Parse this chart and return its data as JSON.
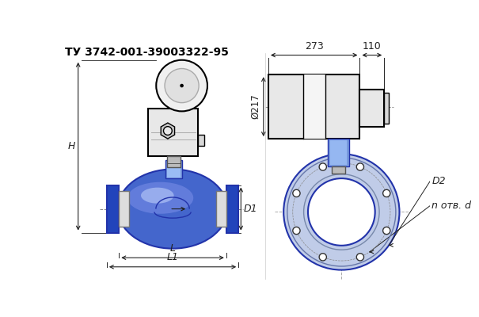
{
  "title": "ТУ 3742-001-39003322-95",
  "bg_color": "#ffffff",
  "line_color": "#000000",
  "blue_body": "#4466cc",
  "blue_light": "#aabbee",
  "blue_medium": "#6688dd",
  "blue_dark": "#2233aa",
  "blue_flange": "#2244bb",
  "blue_stem": "#7799dd",
  "blue_stem_light": "#aaccff",
  "gray_light": "#e8e8e8",
  "gray_med": "#cccccc",
  "dim_color": "#222222",
  "dim_273": "273",
  "dim_110": "110",
  "dim_217": "Ø217",
  "dim_H": "H",
  "dim_D1": "D1",
  "dim_L": "L",
  "dim_L1": "L1",
  "dim_D2": "D2",
  "dim_holes": "n отв. d"
}
